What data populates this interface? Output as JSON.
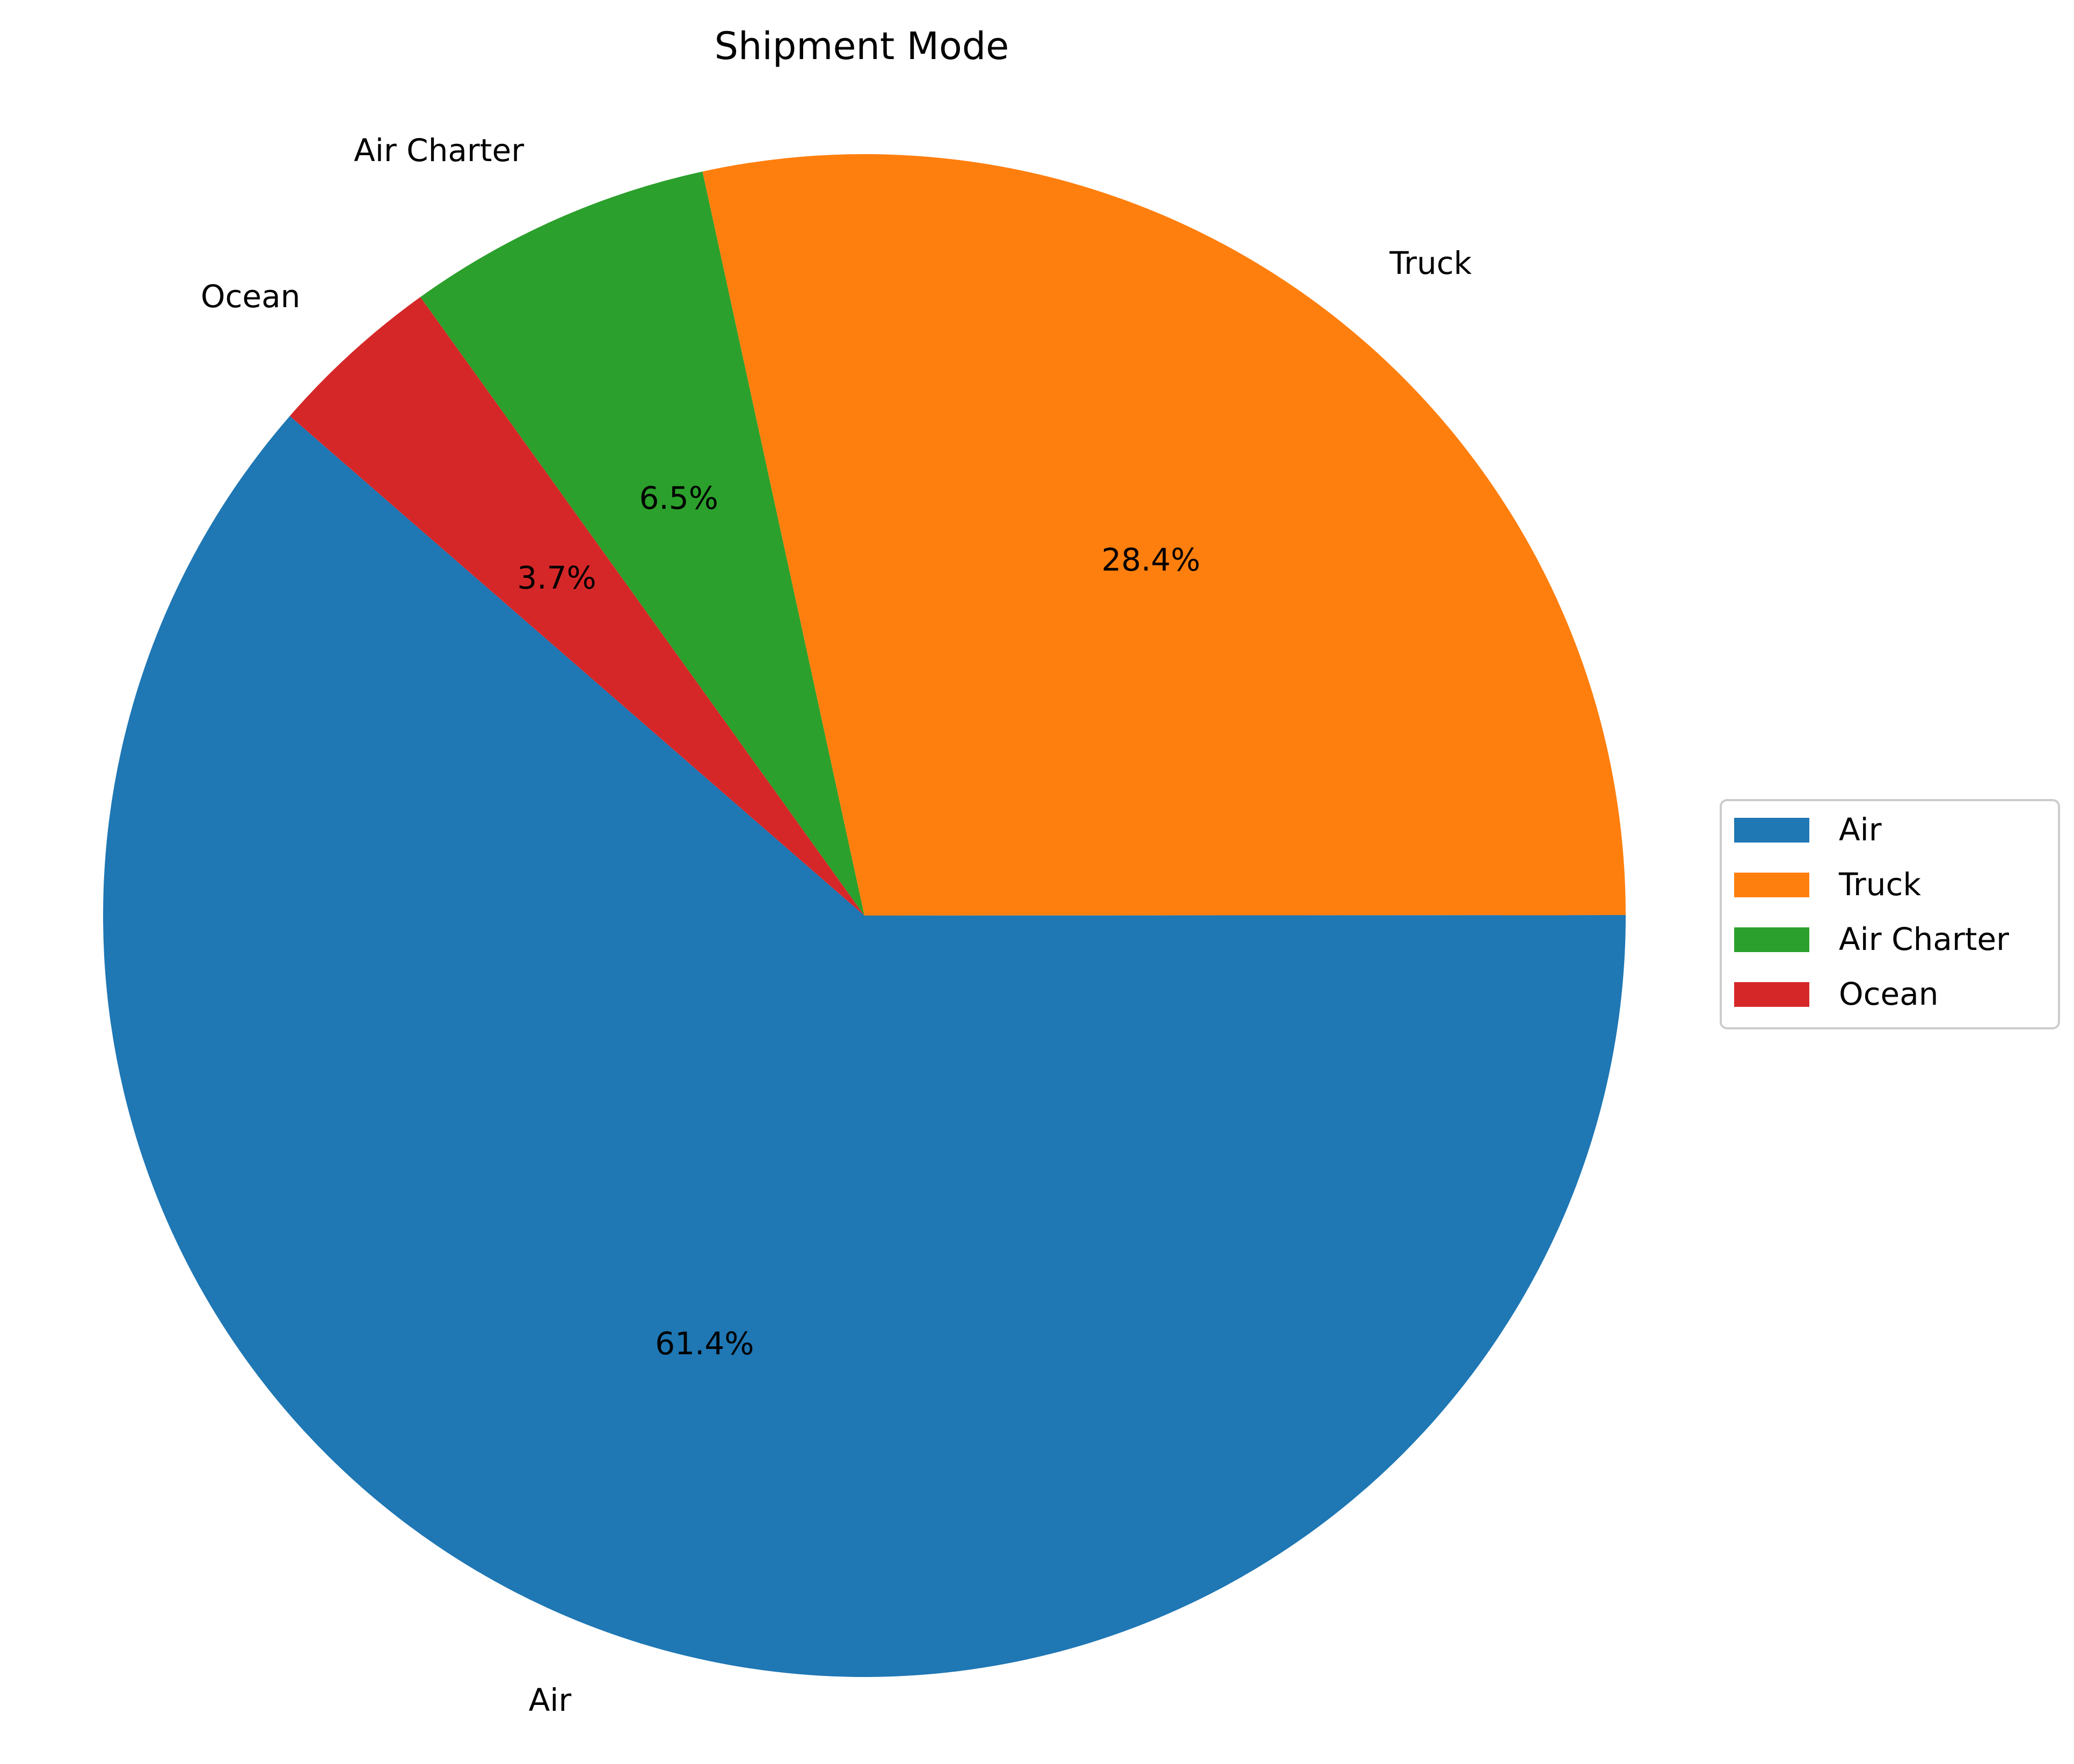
{
  "chart_data": {
    "type": "pie",
    "title": "Shipment Mode",
    "categories": [
      "Air",
      "Truck",
      "Air Charter",
      "Ocean"
    ],
    "values": [
      61.4,
      28.4,
      6.5,
      3.7
    ],
    "percent_labels": [
      "61.4%",
      "28.4%",
      "6.5%",
      "3.7%"
    ],
    "colors": [
      "#1f77b4",
      "#ff7f0e",
      "#2ca02c",
      "#d62728"
    ],
    "start_angle_deg": 139,
    "direction": "counterclockwise",
    "legend": {
      "placement": "center-right",
      "entries": [
        "Air",
        "Truck",
        "Air Charter",
        "Ocean"
      ]
    }
  }
}
